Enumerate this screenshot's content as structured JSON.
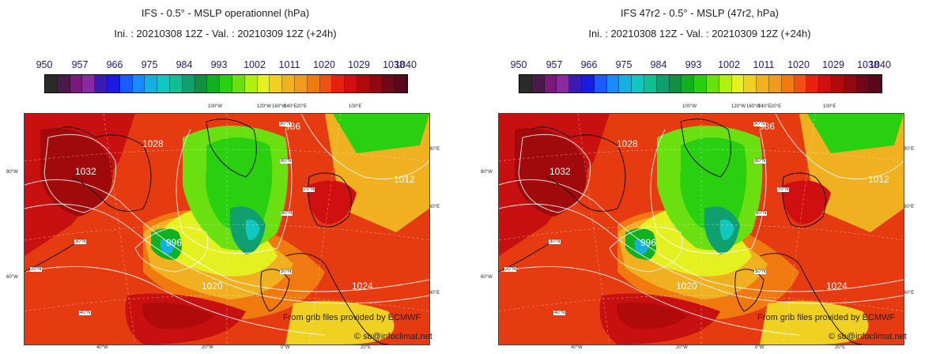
{
  "colorbar": {
    "labels": [
      "950",
      "957",
      "966",
      "975",
      "984",
      "993",
      "1002",
      "1011",
      "1020",
      "1029",
      "1038",
      "1040"
    ],
    "colors": [
      "#2b2b2b",
      "#4a1a4a",
      "#7a1a7a",
      "#8a2aa0",
      "#3a1ab0",
      "#1a1ae0",
      "#1a5aff",
      "#1a8aff",
      "#14b0e0",
      "#10c8c0",
      "#10c090",
      "#10a070",
      "#109040",
      "#10b020",
      "#28d010",
      "#6ae010",
      "#b0f010",
      "#e4f020",
      "#f0d020",
      "#f0b020",
      "#f09a20",
      "#f07a10",
      "#f05010",
      "#e82010",
      "#d01010",
      "#b00a0a",
      "#900810",
      "#700818",
      "#58081a"
    ]
  },
  "panels": [
    {
      "id": "left",
      "title": "IFS - 0.5° - MSLP operationnel (hPa)",
      "subtitle": "Ini. : 20210308 12Z - Val. : 20210309 12Z (+24h)"
    },
    {
      "id": "right",
      "title": "IFS 47r2 - 0.5° - MSLP (47r2, hPa)",
      "subtitle": "Ini. : 20210308 12Z - Val. : 20210309 12Z (+24h)"
    }
  ],
  "map_labels": {
    "top_ticks": [
      "100°W",
      "120°W",
      "160°W",
      "140°E",
      "20°E",
      "100°E"
    ],
    "bottom_ticks": [
      "40°W",
      "20°W",
      "0°W",
      "20°E"
    ],
    "left_ticks": [
      "80°W",
      "60°W"
    ],
    "right_ticks": [
      "80°E",
      "60°E",
      "40°E"
    ],
    "lat_labels": [
      "90°N",
      "80°N",
      "70°N",
      "60°N",
      "50°N",
      "40°N",
      "30°N",
      "20°N"
    ],
    "contour_labels": [
      "1020",
      "1032",
      "1024",
      "996",
      "986",
      "1028",
      "1012"
    ]
  },
  "credits": {
    "source": "From grib files provided by ECMWF",
    "copyright": "© sb@infoclimat.net"
  }
}
